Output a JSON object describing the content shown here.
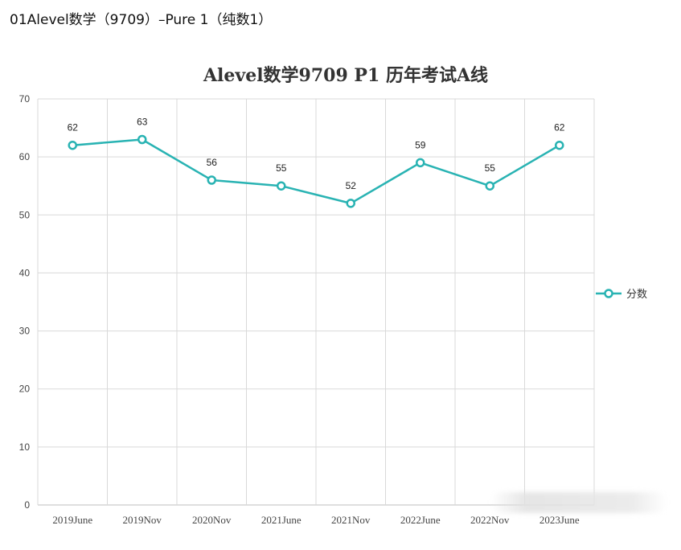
{
  "page_heading": "01Alevel数学（9709）–Pure 1（纯数1）",
  "colors": {
    "series": "#29b3b3",
    "grid": "#d9d9d9",
    "axis": "#bfbfbf"
  },
  "chart_data": {
    "type": "line",
    "title": "Alevel数学9709 P1 历年考试A线",
    "categories": [
      "2019June",
      "2019Nov",
      "2020Nov",
      "2021June",
      "2021Nov",
      "2022June",
      "2022Nov",
      "2023June"
    ],
    "series": [
      {
        "name": "分数",
        "values": [
          62,
          63,
          56,
          55,
          52,
          59,
          55,
          62
        ]
      }
    ],
    "xlabel": "",
    "ylabel": "",
    "ylim": [
      0,
      70
    ],
    "yticks": [
      0,
      10,
      20,
      30,
      40,
      50,
      60,
      70
    ],
    "grid": true,
    "legend_position": "right"
  }
}
